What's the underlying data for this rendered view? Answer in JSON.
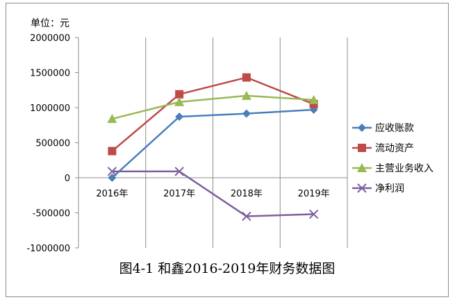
{
  "chart_data": {
    "type": "line",
    "unit_label": "单位：元",
    "caption": "图4-1 和鑫2016-2019年财务数据图",
    "categories": [
      "2016年",
      "2017年",
      "2018年",
      "2019年"
    ],
    "ylim": [
      -1000000,
      2000000
    ],
    "yticks": [
      2000000,
      1500000,
      1000000,
      500000,
      0,
      -500000,
      -1000000
    ],
    "ytick_labels": [
      "2000000",
      "1500000",
      "1000000",
      "500000",
      "0",
      "-500000",
      "-1000000"
    ],
    "grid": "vertical",
    "legend_position": "right",
    "series": [
      {
        "name": "应收账款",
        "values": [
          0,
          870000,
          915000,
          970000
        ],
        "color": "#4a7ebb",
        "marker": "diamond"
      },
      {
        "name": "流动资产",
        "values": [
          380000,
          1190000,
          1430000,
          1050000
        ],
        "color": "#be4b48",
        "marker": "square"
      },
      {
        "name": "主营业务收入",
        "values": [
          840000,
          1080000,
          1170000,
          1110000
        ],
        "color": "#98b954",
        "marker": "triangle"
      },
      {
        "name": "净利润",
        "values": [
          90000,
          90000,
          -550000,
          -520000
        ],
        "color": "#7d5fa0",
        "marker": "x"
      }
    ]
  }
}
